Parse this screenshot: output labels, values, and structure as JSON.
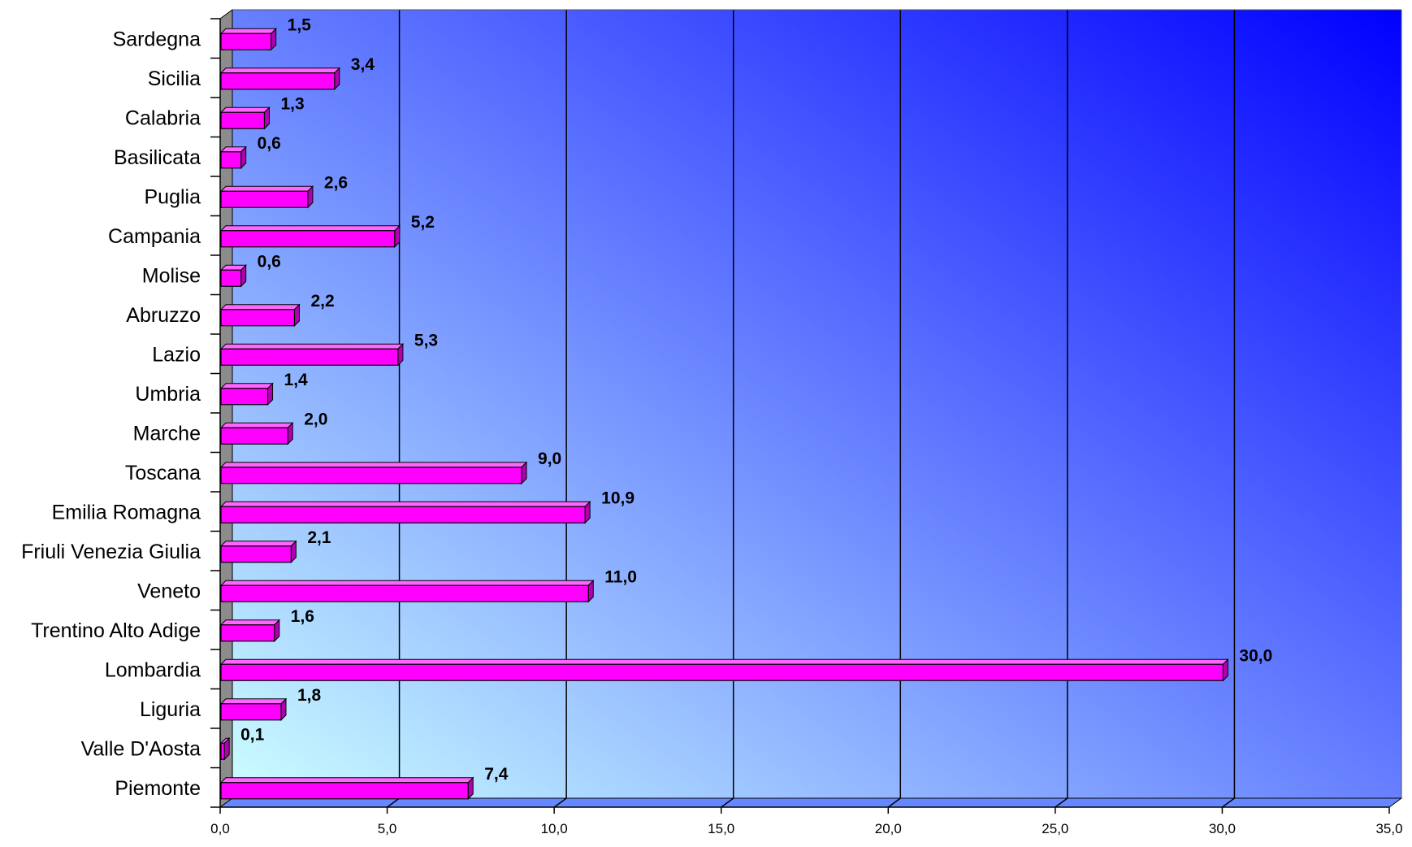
{
  "chart_data": {
    "type": "bar",
    "orientation": "horizontal",
    "title": "",
    "xlabel": "",
    "ylabel": "",
    "categories": [
      "Sardegna",
      "Sicilia",
      "Calabria",
      "Basilicata",
      "Puglia",
      "Campania",
      "Molise",
      "Abruzzo",
      "Lazio",
      "Umbria",
      "Marche",
      "Toscana",
      "Emilia Romagna",
      "Friuli Venezia Giulia",
      "Veneto",
      "Trentino Alto Adige",
      "Lombardia",
      "Liguria",
      "Valle D'Aosta",
      "Piemonte"
    ],
    "values": [
      1.5,
      3.4,
      1.3,
      0.6,
      2.6,
      5.2,
      0.6,
      2.2,
      5.3,
      1.4,
      2.0,
      9.0,
      10.9,
      2.1,
      11.0,
      1.6,
      30.0,
      1.8,
      0.1,
      7.4
    ],
    "value_labels": [
      "1,5",
      "3,4",
      "1,3",
      "0,6",
      "2,6",
      "5,2",
      "0,6",
      "2,2",
      "5,3",
      "1,4",
      "2,0",
      "9,0",
      "10,9",
      "2,1",
      "11,0",
      "1,6",
      "30,0",
      "1,8",
      "0,1",
      "7,4"
    ],
    "xlim": [
      0,
      35
    ],
    "xticks": [
      0,
      5,
      10,
      15,
      20,
      25,
      30,
      35
    ],
    "xtick_labels": [
      "0,0",
      "5,0",
      "10,0",
      "15,0",
      "20,0",
      "25,0",
      "30,0",
      "35,0"
    ],
    "grid": true,
    "legend": "none",
    "colors": {
      "bar_face": "#ff00ff",
      "bar_top": "#ff66ff",
      "bar_side": "#b000b0",
      "bar_outline": "#000000",
      "background_start": "#ccffff",
      "background_end": "#0000ff",
      "wall": "#8c8c8c",
      "floor": "#6688ff",
      "gridline": "#000000"
    }
  }
}
